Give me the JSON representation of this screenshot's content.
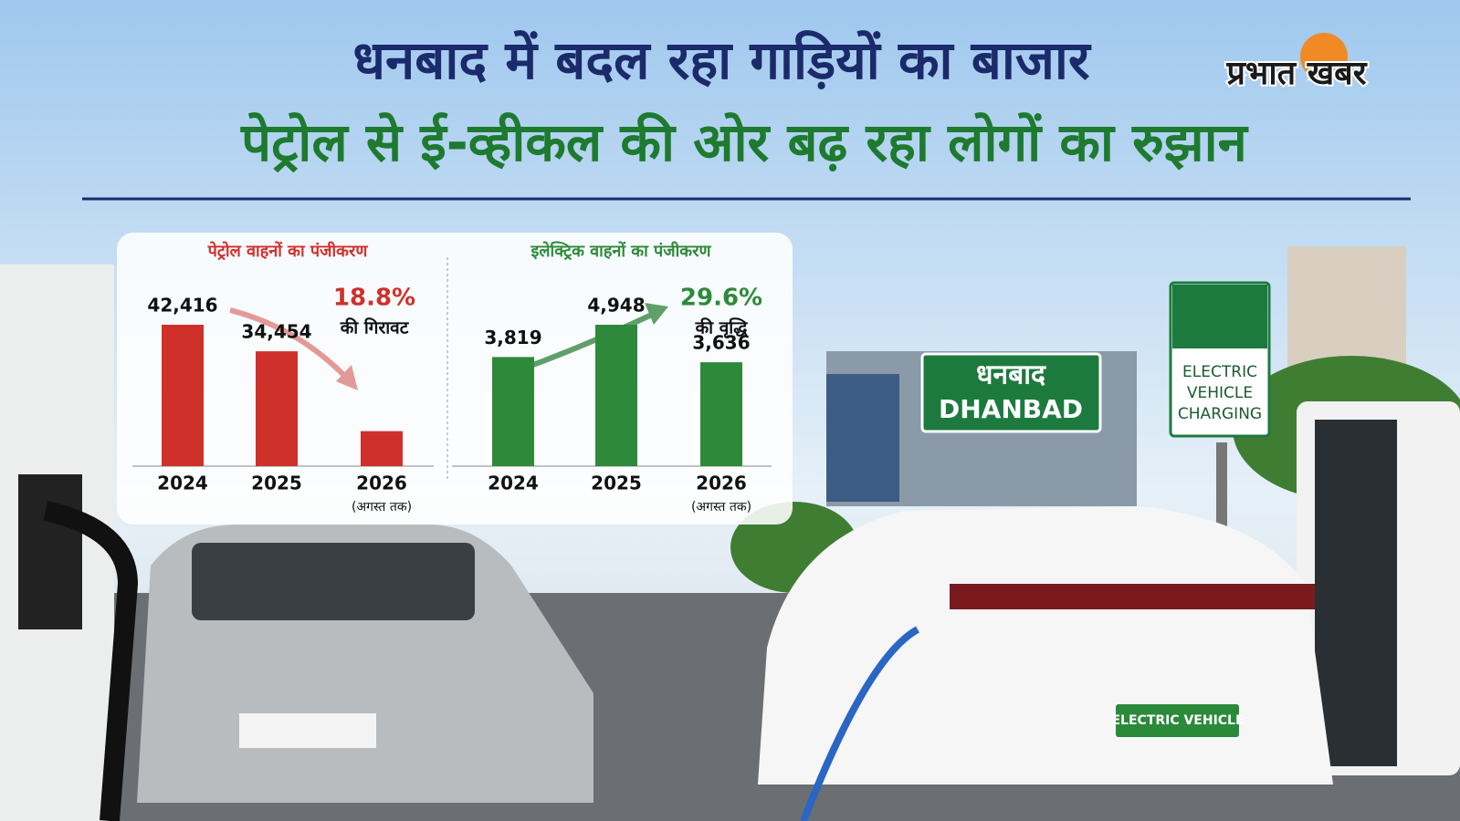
{
  "headline": {
    "line1": "धनबाद में बदल रहा गाड़ियों का बाजार",
    "line2": "पेट्रोल से ई-व्हीकल की ओर बढ़ रहा लोगों का रुझान"
  },
  "brand": "प्रभात खबर",
  "road_sign": {
    "hindi": "धनबाद",
    "english": "DHANBAD"
  },
  "charging_sign": [
    "ELECTRIC",
    "VEHICLE",
    "CHARGING"
  ],
  "number_plate": "ELECTRIC VEHICLE",
  "chart_data": [
    {
      "type": "bar",
      "title": "पेट्रोल वाहनों का पंजीकरण",
      "categories": [
        "2024",
        "2025",
        "2026"
      ],
      "category_note": "(अगस्त तक)",
      "values": [
        42416,
        34454,
        10500
      ],
      "value_labels": [
        "42,416",
        "34,454",
        null
      ],
      "color": "#d0302a",
      "change_label": "18.8%",
      "change_text": "की गिरावट"
    },
    {
      "type": "bar",
      "title": "इलेक्ट्रिक वाहनों का पंजीकरण",
      "categories": [
        "2024",
        "2025",
        "2026"
      ],
      "category_note": "(अगस्त तक)",
      "values": [
        3819,
        4948,
        3636
      ],
      "value_labels": [
        "3,819",
        "4,948",
        "3,636"
      ],
      "color": "#2e8a3a",
      "change_label": "29.6%",
      "change_text": "की वृद्धि"
    }
  ]
}
